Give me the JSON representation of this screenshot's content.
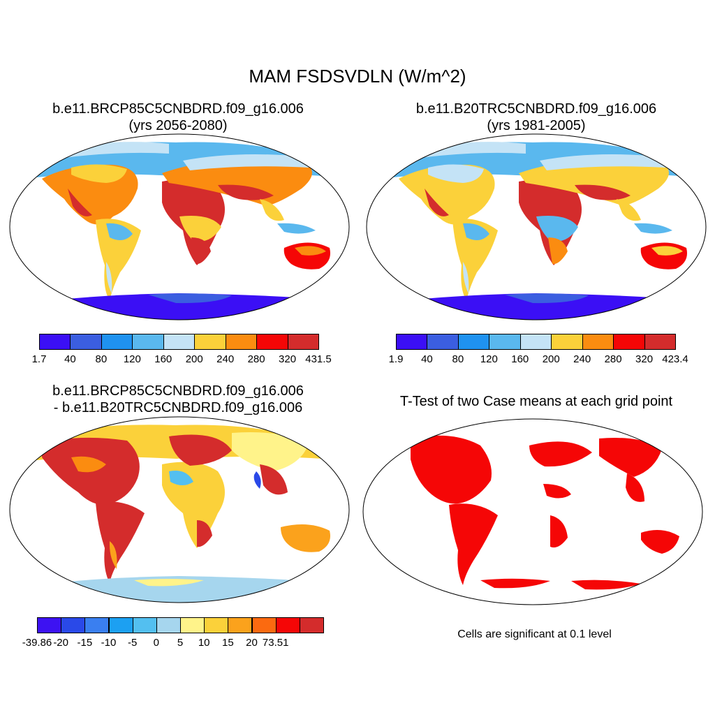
{
  "figure": {
    "title": "MAM FSDSVDLN (W/m^2)"
  },
  "panels": [
    {
      "title_lines": [
        "b.e11.BRCP85C5CNBDRD.f09_g16.006",
        "(yrs 2056-2080)"
      ],
      "colorbar": {
        "colors": [
          "#3b0ff5",
          "#3b5ee0",
          "#1f92f0",
          "#5ab8ee",
          "#c4e3f6",
          "#fbd13a",
          "#fb8c10",
          "#f50606",
          "#d42c2c"
        ],
        "labels": [
          "1.7",
          "40",
          "80",
          "120",
          "160",
          "200",
          "240",
          "280",
          "320",
          "431.5"
        ]
      }
    },
    {
      "title_lines": [
        "b.e11.B20TRC5CNBDRD.f09_g16.006",
        "(yrs 1981-2005)"
      ],
      "colorbar": {
        "colors": [
          "#3b0ff5",
          "#3b5ee0",
          "#1f92f0",
          "#5ab8ee",
          "#c4e3f6",
          "#fbd13a",
          "#fb8c10",
          "#f50606",
          "#d42c2c"
        ],
        "labels": [
          "1.9",
          "40",
          "80",
          "120",
          "160",
          "200",
          "240",
          "280",
          "320",
          "423.4"
        ]
      }
    },
    {
      "title_lines": [
        "b.e11.BRCP85C5CNBDRD.f09_g16.006",
        "- b.e11.B20TRC5CNBDRD.f09_g16.006"
      ],
      "colorbar": {
        "colors": [
          "#3d12f2",
          "#2a49e8",
          "#3a7ff0",
          "#1ca0f2",
          "#53bff0",
          "#a6d6ee",
          "#fff38a",
          "#fbd13a",
          "#fba21c",
          "#fb6a10",
          "#f50606",
          "#d42c2c"
        ],
        "labels": [
          "-39.86",
          "-20",
          "-15",
          "-10",
          "-5",
          "0",
          "5",
          "10",
          "15",
          "20",
          "73.51"
        ]
      }
    },
    {
      "title_lines": [
        "T-Test of two Case means at each grid point"
      ],
      "note": "Cells are significant at 0.1 level"
    }
  ]
}
